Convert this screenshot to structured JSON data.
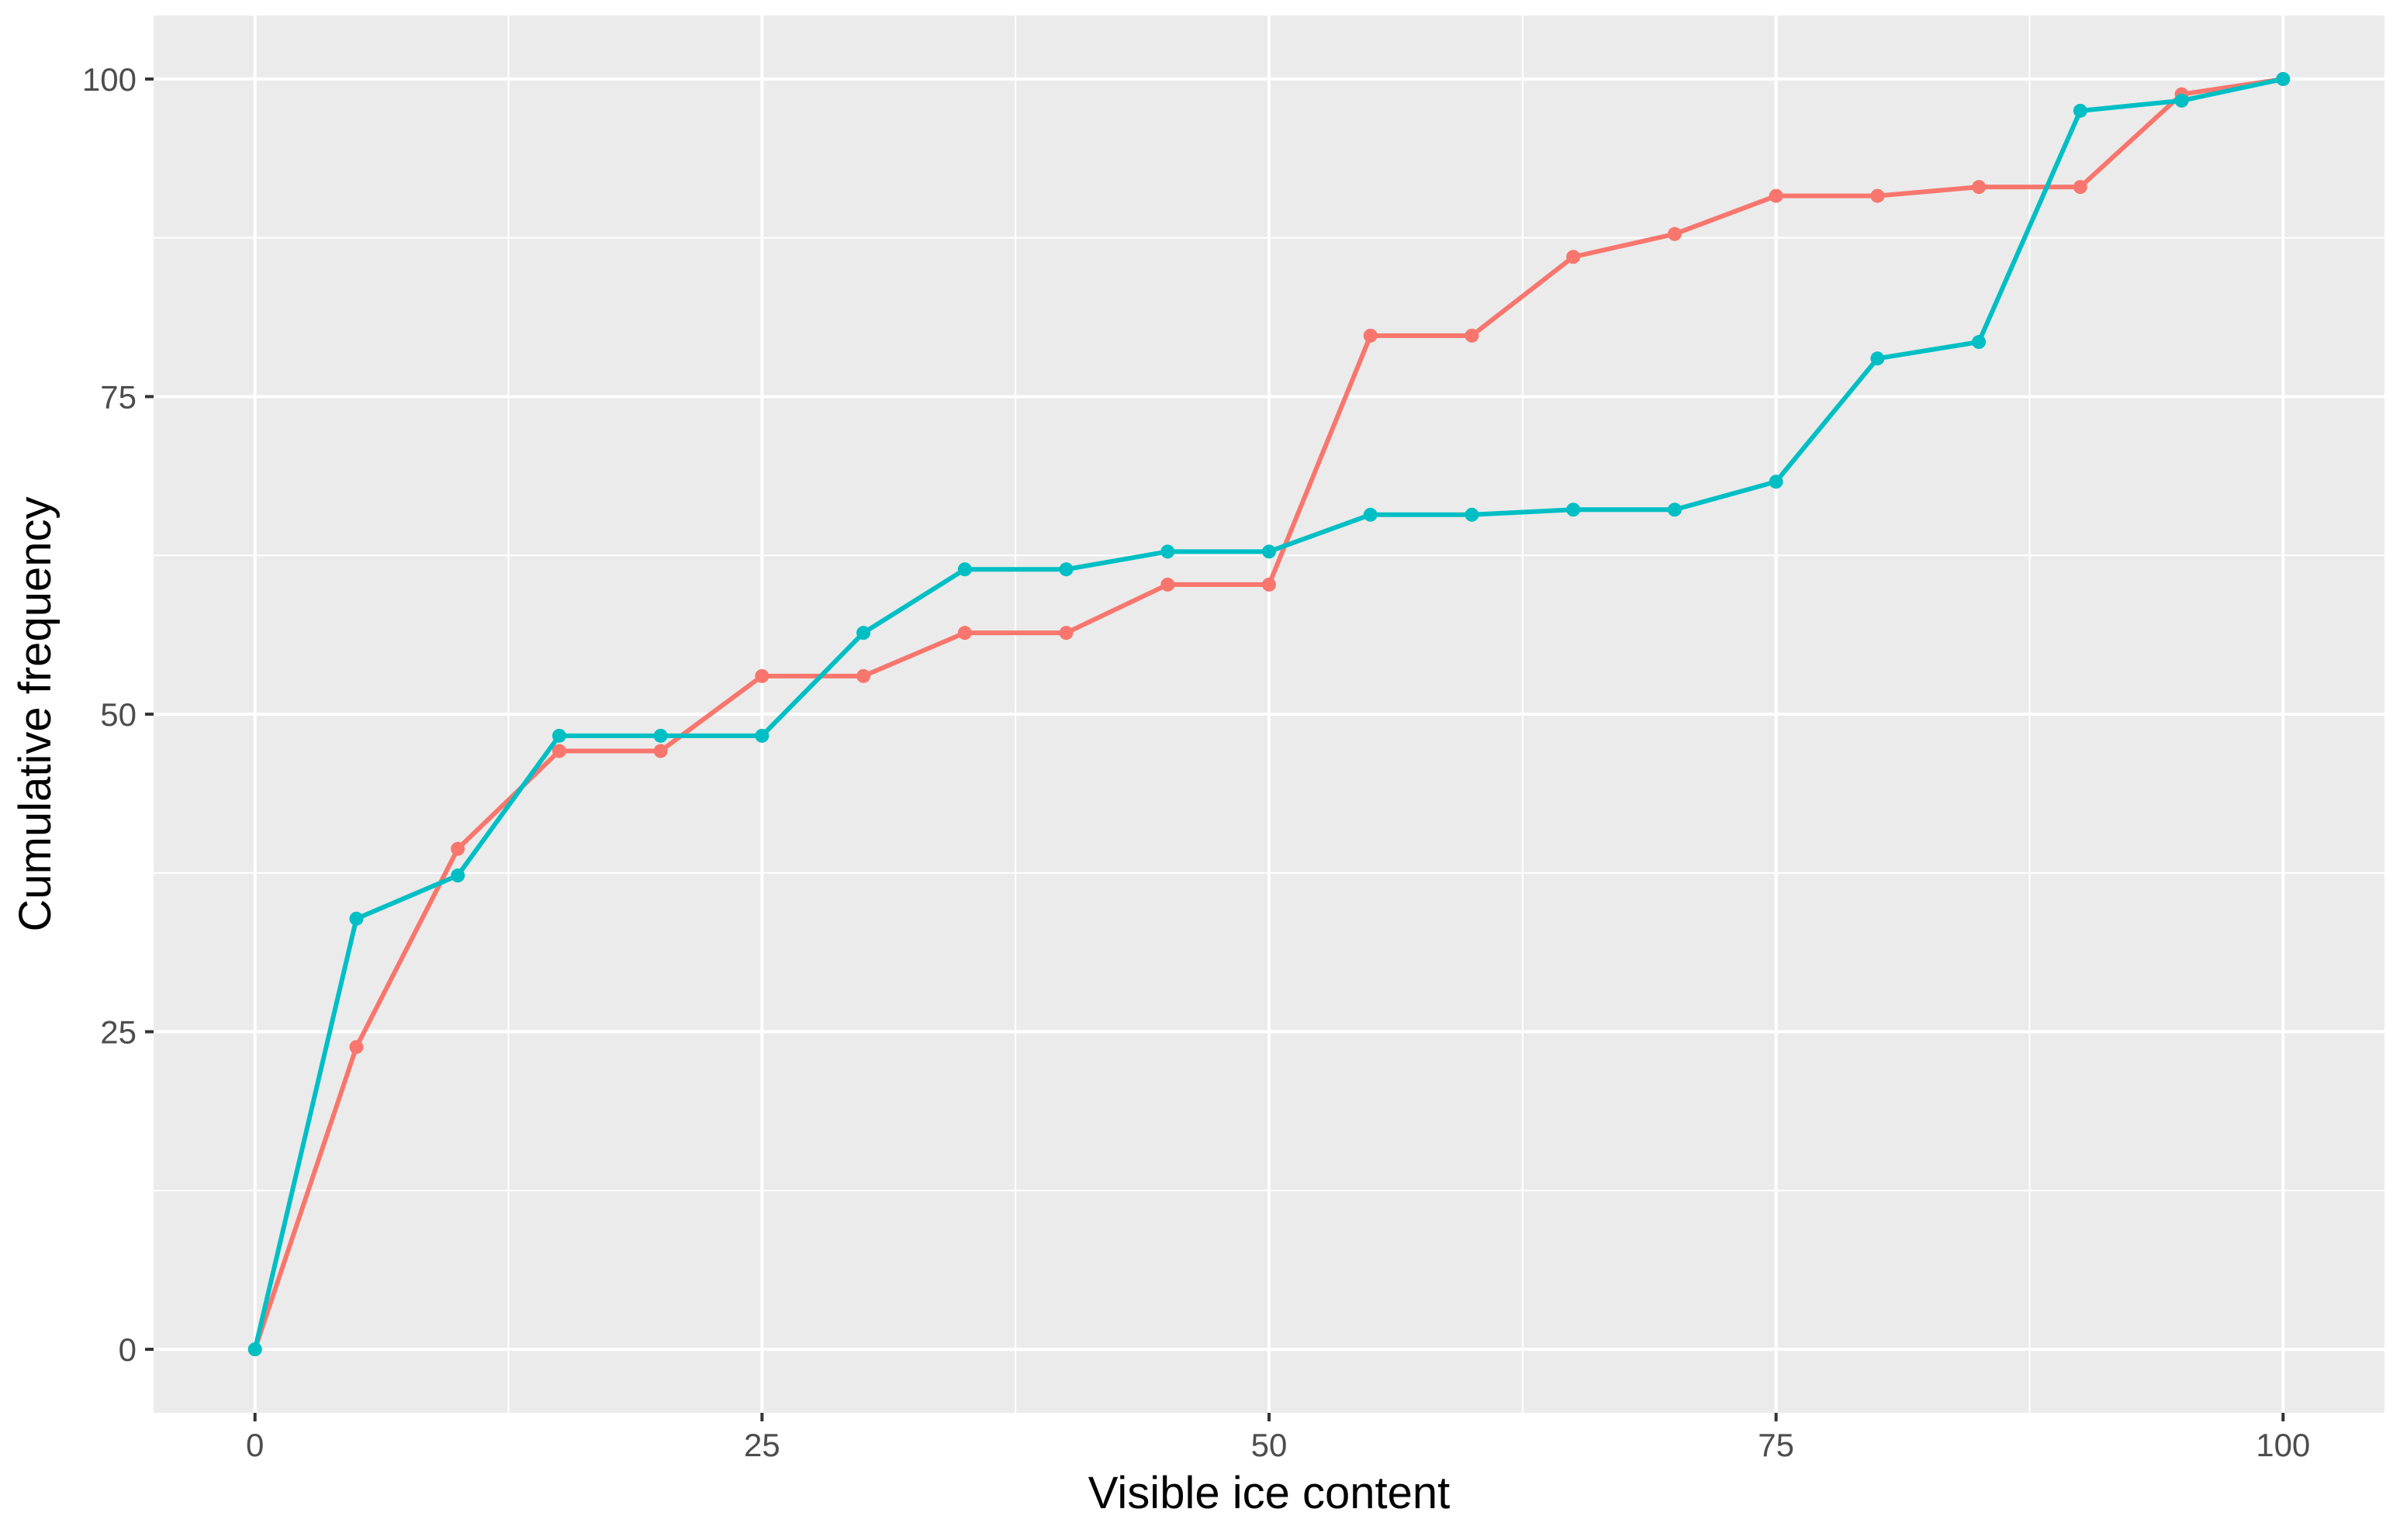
{
  "chart_data": {
    "type": "line",
    "title": "",
    "xlabel": "Visible ice content",
    "ylabel": "Cumulative frequency",
    "xlim": [
      -5,
      105
    ],
    "ylim": [
      -5,
      105
    ],
    "x_ticks": [
      0,
      25,
      50,
      75,
      100
    ],
    "y_ticks": [
      0,
      25,
      50,
      75,
      100
    ],
    "x_tick_labels": [
      "0",
      "25",
      "50",
      "75",
      "100"
    ],
    "y_tick_labels": [
      "0",
      "25",
      "50",
      "75",
      "100"
    ],
    "grid": true,
    "legend": "none",
    "x": [
      0,
      5,
      10,
      15,
      20,
      25,
      30,
      35,
      40,
      45,
      50,
      55,
      60,
      65,
      70,
      75,
      80,
      85,
      90,
      95,
      100
    ],
    "series": [
      {
        "color": "#F8766D",
        "values": [
          0,
          23.8,
          39.4,
          47.1,
          47.1,
          53.0,
          53.0,
          56.4,
          56.4,
          60.2,
          60.2,
          79.8,
          79.8,
          86.0,
          87.8,
          90.8,
          90.8,
          91.5,
          91.5,
          98.8,
          100
        ]
      },
      {
        "color": "#00BFC4",
        "values": [
          0,
          33.9,
          37.3,
          48.3,
          48.3,
          48.3,
          56.4,
          61.4,
          61.4,
          62.8,
          62.8,
          65.7,
          65.7,
          66.1,
          66.1,
          68.3,
          78.0,
          79.3,
          97.5,
          98.3,
          100
        ]
      }
    ],
    "colors": {
      "panel_background": "#EBEBEB",
      "grid_line": "#FFFFFF",
      "tick_mark": "#333333"
    }
  }
}
